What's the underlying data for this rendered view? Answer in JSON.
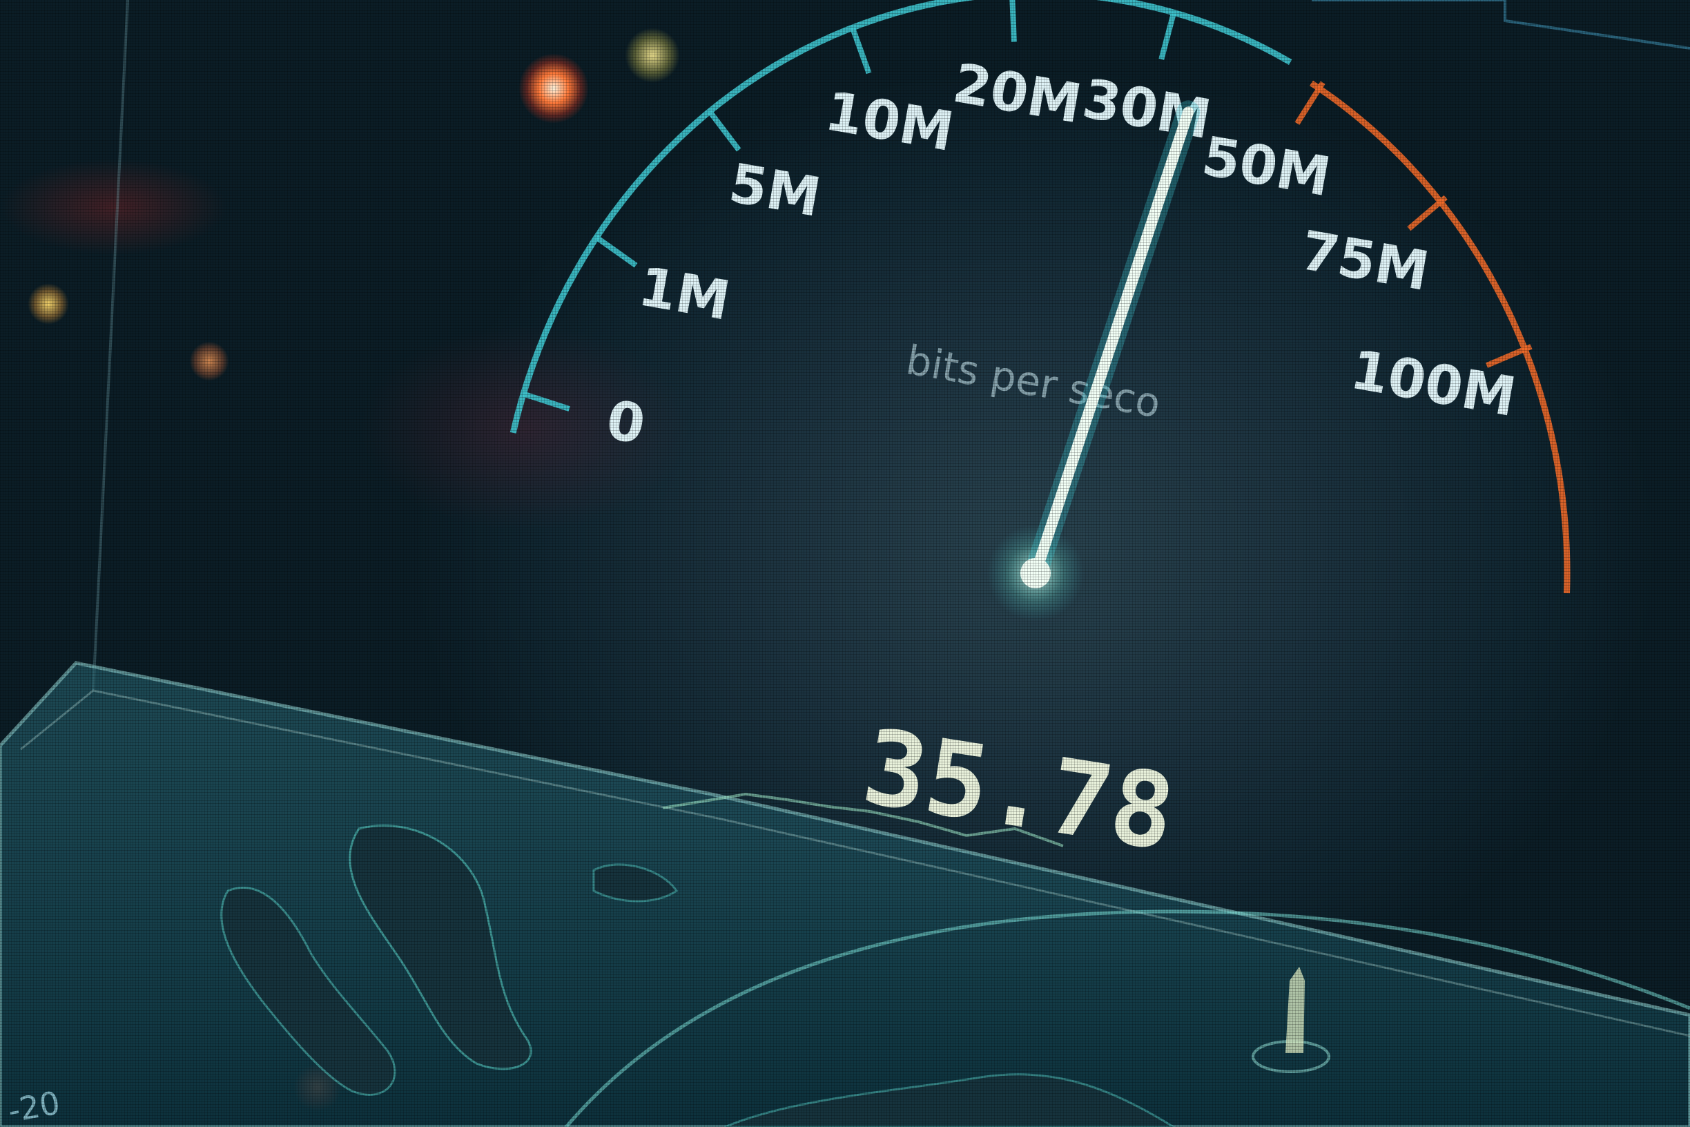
{
  "speedometer": {
    "unit_label": "bits per seco",
    "readout": "35.78",
    "corner_number": "-20",
    "ticks": [
      "0",
      "1M",
      "5M",
      "10M",
      "20M",
      "30M",
      "50M",
      "75M",
      "100M"
    ],
    "needle_value_mbps": 35.78,
    "colors": {
      "arc_primary": "#3fc6d0",
      "arc_warning": "#f06a2a",
      "needle": "#f2fff6",
      "map_outline": "#5ee0d6"
    }
  }
}
